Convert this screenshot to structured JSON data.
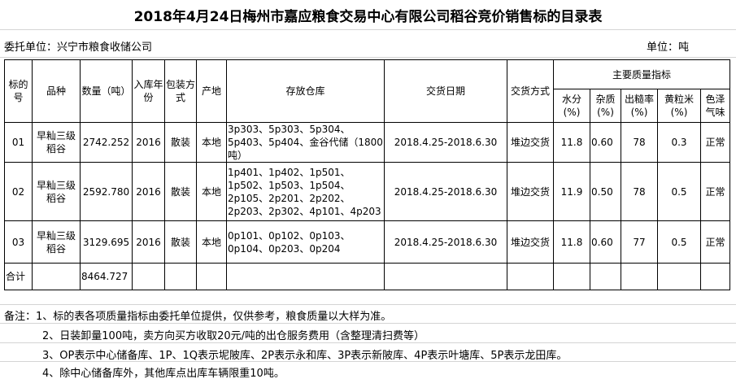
{
  "title": "2018年4月24日梅州市嘉应粮食交易中心有限公司稻谷竞价销售标的目录表",
  "entrust": "委托单位：兴宁市粮食收储公司",
  "unit": "单位：吨",
  "headers": {
    "no": "标的号",
    "variety": "品种",
    "qty": "数量（吨）",
    "year": "入库年份",
    "pack": "包装方式",
    "origin": "产地",
    "store": "存放仓库",
    "date": "交货日期",
    "method": "交货方式",
    "quality": "主要质量指标",
    "water": "水分(%)",
    "impurity": "杂质(%)",
    "yield": "出糙率(%)",
    "yellow": "黄粒米(%)",
    "color": "色泽气味"
  },
  "rows": [
    {
      "no": "01",
      "variety": "早籼三级稻谷",
      "qty": "2742.252",
      "year": "2016",
      "pack": "散装",
      "origin": "本地",
      "store": "3p303、5p303、5p304、5p403、5p404、金谷代储（1800吨）",
      "date": "2018.4.25-2018.6.30",
      "method": "堆边交货",
      "water": "11.8",
      "impurity": "0.60",
      "yield": "78",
      "yellow": "0.3",
      "color": "正常"
    },
    {
      "no": "02",
      "variety": "早籼三级稻谷",
      "qty": "2592.780",
      "year": "2016",
      "pack": "散装",
      "origin": "本地",
      "store": "1p401、1p402、1p501、1p502、1p503、1p504、2p105、2p201、2p202、2p203、2p302、4p101、4p203",
      "date": "2018.4.25-2018.6.30",
      "method": "堆边交货",
      "water": "11.9",
      "impurity": "0.50",
      "yield": "78",
      "yellow": "0.5",
      "color": "正常"
    },
    {
      "no": "03",
      "variety": "早籼三级稻谷",
      "qty": "3129.695",
      "year": "2016",
      "pack": "散装",
      "origin": "本地",
      "store": "0p101、0p102、0p103、0p104、0p203、0p204",
      "date": "2018.4.25-2018.6.30",
      "method": "堆边交货",
      "water": "11.8",
      "impurity": "0.60",
      "yield": "77",
      "yellow": "0.5",
      "color": "正常"
    }
  ],
  "total": {
    "label": "合计",
    "qty": "8464.727"
  },
  "notes": [
    "备注：1、标的表各项质量指标由委托单位提供，仅供参考，粮食质量以大样为准。",
    "2、日装卸量100吨，卖方向买方收取20元/吨的出仓服务费用（含整理清扫费等）",
    "3、OP表示中心储备库、1P、1Q表示坭陂库、2P表示永和库、3P表示新陂库、4P表示叶塘库、5P表示龙田库。",
    "4、除中心储备库外，其他库点出库车辆限重10吨。"
  ]
}
